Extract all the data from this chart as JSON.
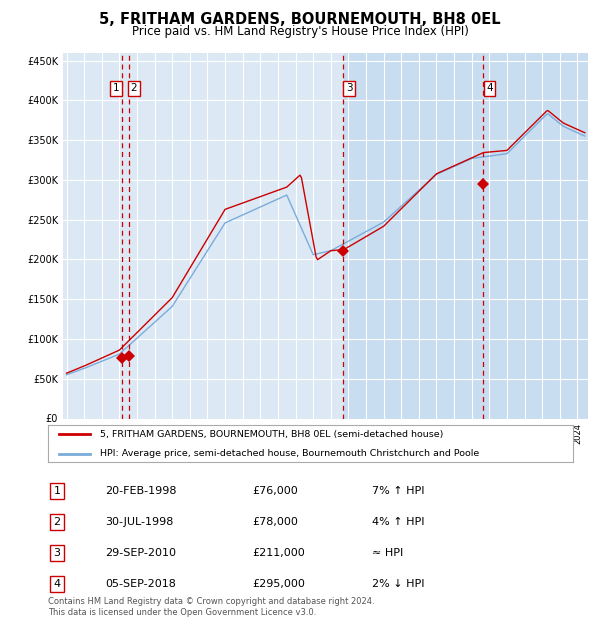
{
  "title": "5, FRITHAM GARDENS, BOURNEMOUTH, BH8 0EL",
  "subtitle": "Price paid vs. HM Land Registry's House Price Index (HPI)",
  "title_fontsize": 10.5,
  "subtitle_fontsize": 8.5,
  "bg_color": "#ffffff",
  "plot_bg_color": "#dce9f5",
  "grid_color": "#ffffff",
  "ylim": [
    0,
    460000
  ],
  "yticks": [
    0,
    50000,
    100000,
    150000,
    200000,
    250000,
    300000,
    350000,
    400000,
    450000
  ],
  "ytick_labels": [
    "£0",
    "£50K",
    "£100K",
    "£150K",
    "£200K",
    "£250K",
    "£300K",
    "£350K",
    "£400K",
    "£450K"
  ],
  "sale_prices": [
    76000,
    78000,
    211000,
    295000
  ],
  "sale_labels": [
    "1",
    "2",
    "3",
    "4"
  ],
  "legend_line1": "5, FRITHAM GARDENS, BOURNEMOUTH, BH8 0EL (semi-detached house)",
  "legend_line2": "HPI: Average price, semi-detached house, Bournemouth Christchurch and Poole",
  "table_data": [
    [
      "1",
      "20-FEB-1998",
      "£76,000",
      "7% ↑ HPI"
    ],
    [
      "2",
      "30-JUL-1998",
      "£78,000",
      "4% ↑ HPI"
    ],
    [
      "3",
      "29-SEP-2010",
      "£211,000",
      "≈ HPI"
    ],
    [
      "4",
      "05-SEP-2018",
      "£295,000",
      "2% ↓ HPI"
    ]
  ],
  "footer": "Contains HM Land Registry data © Crown copyright and database right 2024.\nThis data is licensed under the Open Government Licence v3.0.",
  "red_line_color": "#cc0000",
  "blue_line_color": "#7aacda",
  "sale_marker_color": "#cc0000",
  "vline_color": "#cc0000",
  "shade_color": "#c8ddf0",
  "unshade_color": "#dce9f5"
}
